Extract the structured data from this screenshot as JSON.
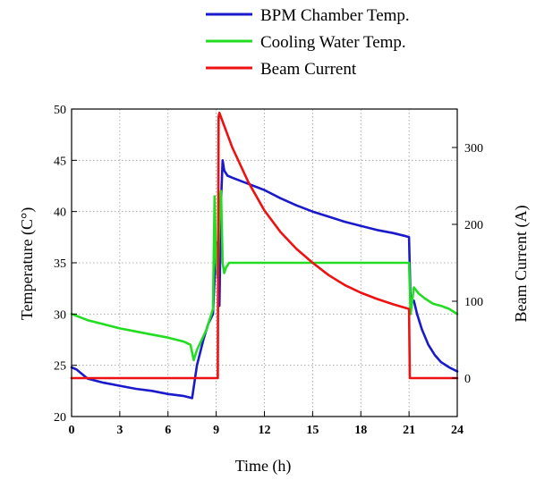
{
  "chart_data": {
    "type": "line",
    "xlabel": "Time (h)",
    "ylabel_left": "Temperature (C°)",
    "ylabel_right": "Beam Current (A)",
    "xlim": [
      0,
      24
    ],
    "xticks": [
      0,
      3,
      6,
      9,
      12,
      15,
      18,
      21,
      24
    ],
    "ylim_left": [
      20,
      50
    ],
    "yticks_left": [
      20,
      25,
      30,
      35,
      40,
      45,
      50
    ],
    "ylim_right": [
      -50,
      350
    ],
    "yticks_right": [
      0,
      100,
      200,
      300
    ],
    "grid": "dotted",
    "legend_position": "top-right",
    "series": [
      {
        "name": "BPM Chamber Temp.",
        "axis": "left",
        "color": "#1a1acc",
        "x": [
          0,
          0.3,
          0.6,
          1,
          2,
          3,
          4,
          5,
          6,
          7,
          7.5,
          7.8,
          8.2,
          8.5,
          8.8,
          9.0,
          9.1,
          9.2,
          9.3,
          9.4,
          9.5,
          9.7,
          10,
          11,
          12,
          13,
          14,
          15,
          16,
          17,
          18,
          19,
          20,
          20.8,
          21.0,
          21.1,
          21.3,
          21.5,
          21.8,
          22.2,
          22.6,
          23.0,
          23.5,
          24
        ],
        "y": [
          24.8,
          24.6,
          24.2,
          23.7,
          23.3,
          23.0,
          22.7,
          22.5,
          22.2,
          22.0,
          21.8,
          25.0,
          27.5,
          29.0,
          30.0,
          37.0,
          34.0,
          30.8,
          41.0,
          45.0,
          44.0,
          43.5,
          43.3,
          42.7,
          42.1,
          41.3,
          40.6,
          40.0,
          39.5,
          39.0,
          38.6,
          38.2,
          37.9,
          37.6,
          37.5,
          31.0,
          31.3,
          30.0,
          28.5,
          27.0,
          26.0,
          25.3,
          24.8,
          24.4
        ]
      },
      {
        "name": "Cooling Water Temp.",
        "axis": "left",
        "color": "#22dd22",
        "x": [
          0,
          1,
          2,
          3,
          4,
          5,
          6,
          7,
          7.4,
          7.6,
          7.8,
          8.1,
          8.4,
          8.6,
          8.8,
          8.9,
          9.0,
          9.1,
          9.2,
          9.3,
          9.4,
          9.5,
          9.6,
          9.8,
          10,
          11,
          12,
          13,
          14,
          15,
          16,
          17,
          18,
          19,
          20,
          21.0,
          21.1,
          21.3,
          21.6,
          22,
          22.5,
          23,
          23.5,
          24
        ],
        "y": [
          30.0,
          29.4,
          29.0,
          28.6,
          28.3,
          28.0,
          27.7,
          27.3,
          27.0,
          25.5,
          26.5,
          27.5,
          28.5,
          29.5,
          30.5,
          41.5,
          35.0,
          33.5,
          40.0,
          42.0,
          35.0,
          34.0,
          34.5,
          35.0,
          35.0,
          35.0,
          35.0,
          35.0,
          35.0,
          35.0,
          35.0,
          35.0,
          35.0,
          35.0,
          35.0,
          35.0,
          30.0,
          32.6,
          32.0,
          31.5,
          31.0,
          30.8,
          30.5,
          30.0
        ]
      },
      {
        "name": "Beam Current",
        "axis": "right",
        "color": "#ee1111",
        "x": [
          0,
          9.1,
          9.15,
          9.2,
          10,
          11,
          12,
          13,
          14,
          15,
          16,
          17,
          18,
          19,
          20,
          21.0,
          21.05,
          24
        ],
        "y": [
          0,
          0,
          340,
          345,
          300,
          255,
          218,
          190,
          168,
          150,
          134,
          121,
          111,
          103,
          96,
          90,
          0,
          0
        ]
      }
    ]
  }
}
